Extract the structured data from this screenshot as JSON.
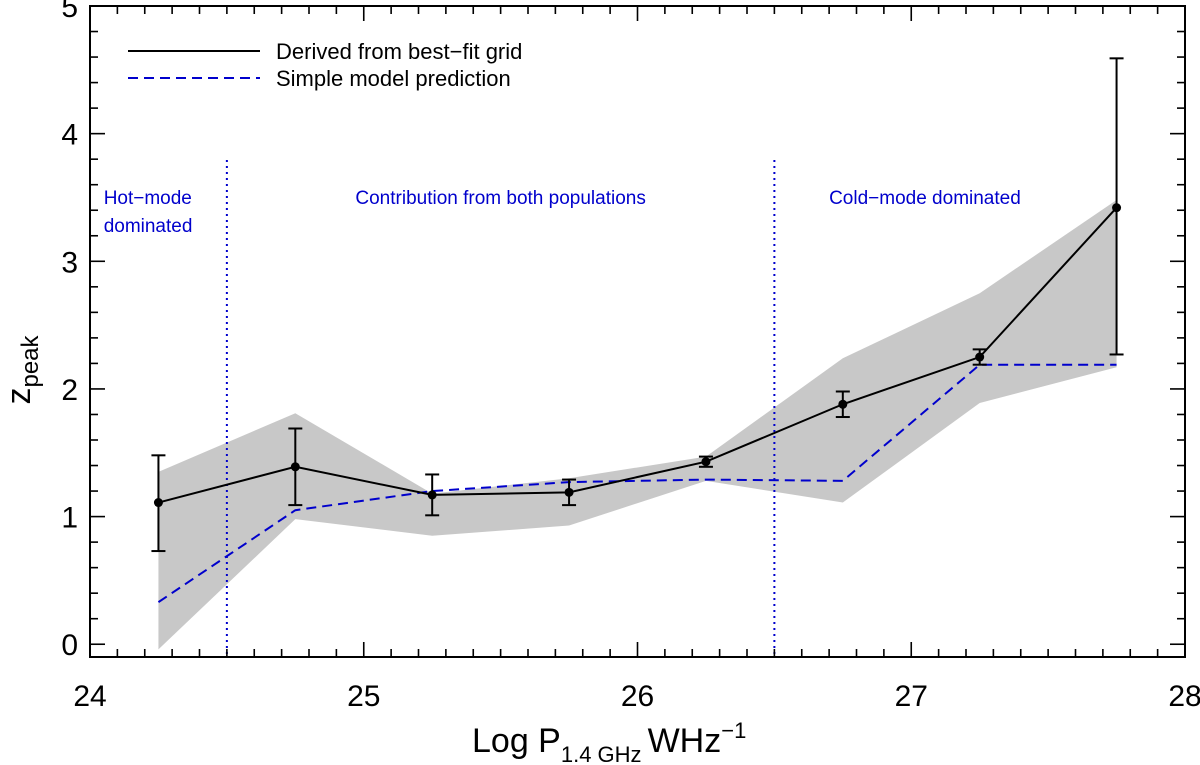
{
  "chart_data": {
    "type": "line",
    "xlabel": {
      "main": "Log P",
      "sub": "1.4 GHz",
      "unit": "WHz",
      "exp": "−1"
    },
    "ylabel": {
      "main": "z",
      "sub": "peak"
    },
    "xlim": [
      24,
      28
    ],
    "ylim": [
      -0.1,
      5
    ],
    "xticks": [
      "24",
      "25",
      "26",
      "27",
      "28"
    ],
    "xtick_values": [
      24,
      25,
      26,
      27,
      28
    ],
    "yticks": [
      "0",
      "1",
      "2",
      "3",
      "4",
      "5"
    ],
    "ytick_values": [
      0,
      1,
      2,
      3,
      4,
      5
    ],
    "x": [
      24.25,
      24.75,
      25.25,
      25.75,
      26.25,
      26.75,
      27.25,
      27.75
    ],
    "series": [
      {
        "name": "Derived from best−fit grid",
        "style": "solid",
        "color": "#000000",
        "values": [
          1.11,
          1.39,
          1.17,
          1.19,
          1.43,
          1.88,
          2.25,
          3.42
        ],
        "err_low": [
          0.38,
          0.3,
          0.16,
          0.1,
          0.04,
          0.1,
          0.06,
          1.15
        ],
        "err_high": [
          0.37,
          0.3,
          0.16,
          0.1,
          0.04,
          0.1,
          0.06,
          1.17
        ],
        "band_low": [
          -0.04,
          0.98,
          0.85,
          0.93,
          1.28,
          1.11,
          1.89,
          2.17
        ],
        "band_high": [
          1.35,
          1.81,
          1.18,
          1.3,
          1.47,
          2.24,
          2.75,
          3.48
        ]
      },
      {
        "name": "Simple model prediction",
        "style": "dashed",
        "color": "#0000cc",
        "values": [
          0.33,
          1.05,
          1.2,
          1.27,
          1.29,
          1.28,
          2.19,
          2.19
        ]
      }
    ],
    "vlines": [
      {
        "x": 24.5,
        "style": "dotted",
        "color": "#0000cc"
      },
      {
        "x": 26.5,
        "style": "dotted",
        "color": "#0000cc"
      }
    ],
    "annotations": [
      {
        "lines": [
          "Hot−mode",
          "dominated"
        ],
        "x": 24.05,
        "y": 3.45,
        "color": "#0000cc"
      },
      {
        "lines": [
          "Contribution from both populations"
        ],
        "x": 25.5,
        "y": 3.45,
        "color": "#0000cc",
        "anchor": "middle"
      },
      {
        "lines": [
          "Cold−mode dominated"
        ],
        "x": 27.05,
        "y": 3.45,
        "color": "#0000cc",
        "anchor": "middle"
      }
    ],
    "band_color": "#c8c8c8",
    "legend_position": "top-left"
  }
}
